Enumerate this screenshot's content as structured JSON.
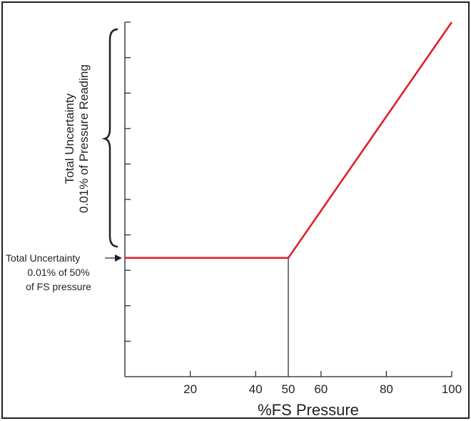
{
  "chart_data": {
    "type": "line",
    "xlabel": "%FS Pressure",
    "ylabel": "",
    "x_ticks": [
      20,
      40,
      50,
      60,
      80,
      100
    ],
    "y_tick_count": 10,
    "xlim": [
      0,
      100
    ],
    "ylim": [
      0,
      1
    ],
    "series": [
      {
        "x": [
          0,
          50,
          100
        ],
        "y": [
          0.335,
          0.335,
          1.0
        ]
      }
    ],
    "reference_line_x": 50,
    "annotations": {
      "brace_label": [
        "Total Uncertainty",
        "0.01% of Pressure Reading"
      ],
      "arrow_label": [
        "Total Uncertainty",
        "0.01% of 50%",
        "of FS pressure"
      ]
    },
    "grid": false,
    "colors": {
      "line": "#e31e24",
      "axis": "#231f20",
      "frame": "#231f20"
    }
  }
}
